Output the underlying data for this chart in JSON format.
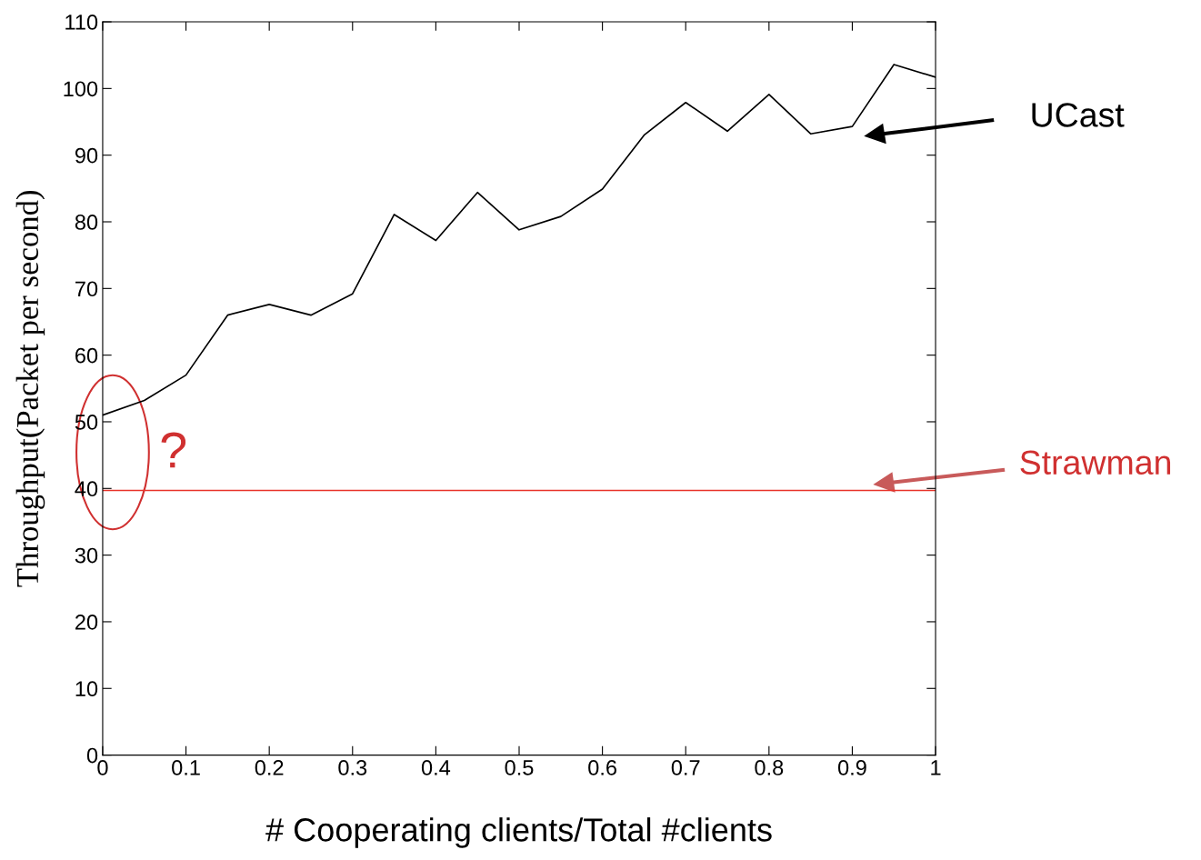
{
  "chart_data": {
    "type": "line",
    "xlabel": "# Cooperating clients/Total #clients",
    "ylabel": "Throughput(Packet per second)",
    "series": [
      {
        "name": "UCast",
        "color": "#000000",
        "x": [
          0,
          0.05,
          0.1,
          0.15,
          0.2,
          0.25,
          0.3,
          0.35,
          0.4,
          0.45,
          0.5,
          0.55,
          0.6,
          0.65,
          0.7,
          0.75,
          0.8,
          0.85,
          0.9,
          0.95,
          1.0
        ],
        "values": [
          51,
          53.2,
          57,
          66,
          67.6,
          66,
          69.2,
          81.1,
          77.2,
          84.4,
          78.8,
          80.8,
          84.9,
          93,
          97.9,
          93.6,
          99.1,
          93.2,
          94.3,
          103.6,
          101.7
        ]
      },
      {
        "name": "Strawman",
        "color": "#e8332a",
        "x": [
          0,
          1
        ],
        "values": [
          39.7,
          39.7
        ]
      }
    ],
    "annotations": [
      "?"
    ],
    "xlim": [
      0,
      1
    ],
    "ylim": [
      0,
      110
    ],
    "xticks": [
      0,
      0.1,
      0.2,
      0.3,
      0.4,
      0.5,
      0.6,
      0.7,
      0.8,
      0.9,
      1
    ],
    "yticks": [
      0,
      10,
      20,
      30,
      40,
      50,
      60,
      70,
      80,
      90,
      100,
      110
    ],
    "grid": false,
    "legend": "right",
    "marker": "none",
    "line_style": "solid"
  }
}
